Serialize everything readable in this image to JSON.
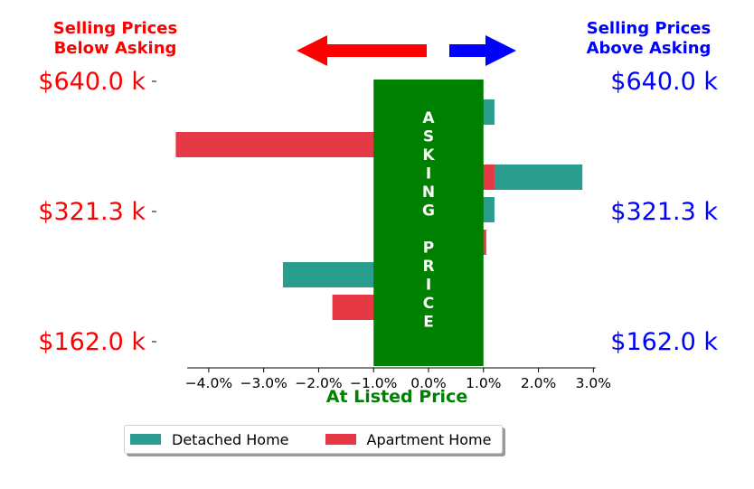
{
  "header": {
    "below_line1": "Selling Prices",
    "below_line2": "Below Asking",
    "above_line1": "Selling Prices",
    "above_line2": "Above Asking",
    "below_color": "#ff0000",
    "above_color": "#0000ff"
  },
  "chart_data": {
    "type": "bar",
    "orientation": "horizontal",
    "title": "",
    "xlabel": "At Listed Price",
    "ylabel": "",
    "xlim": [
      -0.05,
      0.035
    ],
    "x_ticks": [
      -0.04,
      -0.03,
      -0.02,
      -0.01,
      0.0,
      0.01,
      0.02,
      0.03
    ],
    "x_tick_labels": [
      "−4.0%",
      "−3.0%",
      "−2.0%",
      "−1.0%",
      "0.0%",
      "1.0%",
      "2.0%",
      "3.0%"
    ],
    "y_tick_labels_left": [
      "$640.0 k",
      "$321.3 k",
      "$162.0 k"
    ],
    "y_tick_labels_right": [
      "$640.0 k",
      "$321.3 k",
      "$162.0 k"
    ],
    "band_label": "ASKING PRICE",
    "band_letters": [
      "A",
      "S",
      "K",
      "I",
      "N",
      "G",
      "",
      "P",
      "R",
      "I",
      "C",
      "E"
    ],
    "band_range": [
      -0.01,
      0.01
    ],
    "band_color": "#008000",
    "grid": false,
    "legend_position": "bottom-center",
    "series": [
      {
        "name": "Detached Home",
        "color": "#2a9d8f",
        "values": [
          0.012,
          null,
          0.028,
          0.012,
          null,
          -0.0265,
          null
        ]
      },
      {
        "name": "Apartment Home",
        "color": "#e63946",
        "values": [
          null,
          -0.046,
          0.012,
          null,
          0.0105,
          null,
          -0.0175
        ]
      }
    ],
    "rows": 7
  }
}
